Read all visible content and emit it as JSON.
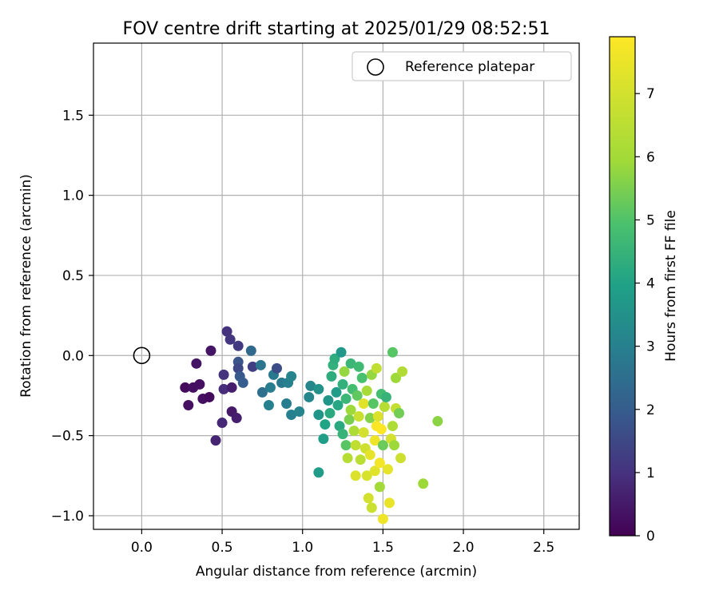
{
  "chart_data": {
    "type": "scatter",
    "title": "FOV centre drift starting at 2025/01/29 08:52:51",
    "xlabel": "Angular distance from reference (arcmin)",
    "ylabel": "Rotation from reference (arcmin)",
    "xlim": [
      -0.3,
      2.72
    ],
    "ylim": [
      -1.085,
      1.95
    ],
    "xticks": [
      0.0,
      0.5,
      1.0,
      1.5,
      2.0,
      2.5
    ],
    "xtick_labels": [
      "0.0",
      "0.5",
      "1.0",
      "1.5",
      "2.0",
      "2.5"
    ],
    "yticks": [
      -1.0,
      -0.5,
      0.0,
      0.5,
      1.0,
      1.5
    ],
    "ytick_labels": [
      "−1.0",
      "−0.5",
      "0.0",
      "0.5",
      "1.0",
      "1.5"
    ],
    "grid": true,
    "legend": {
      "position": "upper-right",
      "entries": [
        "Reference platepar"
      ]
    },
    "reference_point": {
      "x": 0.0,
      "y": 0.0
    },
    "colorbar": {
      "label": "Hours from first FF file",
      "range": [
        0,
        7.9
      ],
      "ticks": [
        0,
        1,
        2,
        3,
        4,
        5,
        6,
        7
      ],
      "tick_labels": [
        "0",
        "1",
        "2",
        "3",
        "4",
        "5",
        "6",
        "7"
      ],
      "colormap": "viridis"
    },
    "points": [
      {
        "x": 0.27,
        "y": -0.2,
        "h": 0.2
      },
      {
        "x": 0.29,
        "y": -0.31,
        "h": 0.3
      },
      {
        "x": 0.32,
        "y": -0.2,
        "h": 0.3
      },
      {
        "x": 0.34,
        "y": -0.05,
        "h": 0.4
      },
      {
        "x": 0.36,
        "y": -0.18,
        "h": 0.3
      },
      {
        "x": 0.38,
        "y": -0.27,
        "h": 0.3
      },
      {
        "x": 0.42,
        "y": -0.26,
        "h": 0.2
      },
      {
        "x": 0.43,
        "y": 0.03,
        "h": 0.4
      },
      {
        "x": 0.46,
        "y": -0.53,
        "h": 0.7
      },
      {
        "x": 0.5,
        "y": -0.42,
        "h": 0.8
      },
      {
        "x": 0.51,
        "y": -0.21,
        "h": 0.9
      },
      {
        "x": 0.51,
        "y": -0.12,
        "h": 1.0
      },
      {
        "x": 0.53,
        "y": 0.15,
        "h": 1.0
      },
      {
        "x": 0.55,
        "y": 0.1,
        "h": 1.1
      },
      {
        "x": 0.56,
        "y": -0.2,
        "h": 0.6
      },
      {
        "x": 0.56,
        "y": -0.35,
        "h": 0.5
      },
      {
        "x": 0.59,
        "y": -0.39,
        "h": 0.6
      },
      {
        "x": 0.6,
        "y": 0.06,
        "h": 1.2
      },
      {
        "x": 0.6,
        "y": -0.04,
        "h": 1.8
      },
      {
        "x": 0.6,
        "y": -0.08,
        "h": 1.5
      },
      {
        "x": 0.61,
        "y": -0.13,
        "h": 1.9
      },
      {
        "x": 0.63,
        "y": -0.17,
        "h": 2.0
      },
      {
        "x": 0.68,
        "y": 0.03,
        "h": 2.3
      },
      {
        "x": 0.69,
        "y": -0.07,
        "h": 1.3
      },
      {
        "x": 0.74,
        "y": -0.06,
        "h": 2.7
      },
      {
        "x": 0.75,
        "y": -0.23,
        "h": 2.5
      },
      {
        "x": 0.79,
        "y": -0.31,
        "h": 3.0
      },
      {
        "x": 0.8,
        "y": -0.2,
        "h": 2.9
      },
      {
        "x": 0.82,
        "y": -0.12,
        "h": 2.8
      },
      {
        "x": 0.84,
        "y": -0.08,
        "h": 1.6
      },
      {
        "x": 0.87,
        "y": -0.17,
        "h": 2.8
      },
      {
        "x": 0.9,
        "y": -0.3,
        "h": 2.9
      },
      {
        "x": 0.91,
        "y": -0.17,
        "h": 3.0
      },
      {
        "x": 0.93,
        "y": -0.13,
        "h": 3.1
      },
      {
        "x": 0.93,
        "y": -0.37,
        "h": 3.0
      },
      {
        "x": 0.98,
        "y": -0.35,
        "h": 3.1
      },
      {
        "x": 1.04,
        "y": -0.26,
        "h": 3.2
      },
      {
        "x": 1.05,
        "y": -0.19,
        "h": 3.2
      },
      {
        "x": 1.1,
        "y": -0.73,
        "h": 3.8
      },
      {
        "x": 1.1,
        "y": -0.37,
        "h": 3.6
      },
      {
        "x": 1.1,
        "y": -0.21,
        "h": 3.5
      },
      {
        "x": 1.13,
        "y": -0.52,
        "h": 3.9
      },
      {
        "x": 1.14,
        "y": -0.43,
        "h": 4.0
      },
      {
        "x": 1.16,
        "y": -0.28,
        "h": 3.6
      },
      {
        "x": 1.17,
        "y": -0.36,
        "h": 4.2
      },
      {
        "x": 1.18,
        "y": -0.13,
        "h": 4.3
      },
      {
        "x": 1.19,
        "y": -0.06,
        "h": 4.4
      },
      {
        "x": 1.2,
        "y": -0.02,
        "h": 4.3
      },
      {
        "x": 1.21,
        "y": -0.23,
        "h": 3.8
      },
      {
        "x": 1.22,
        "y": -0.31,
        "h": 4.1
      },
      {
        "x": 1.23,
        "y": -0.44,
        "h": 4.2
      },
      {
        "x": 1.24,
        "y": 0.02,
        "h": 3.7
      },
      {
        "x": 1.25,
        "y": -0.18,
        "h": 4.4
      },
      {
        "x": 1.25,
        "y": -0.49,
        "h": 4.5
      },
      {
        "x": 1.26,
        "y": -0.1,
        "h": 5.8
      },
      {
        "x": 1.27,
        "y": -0.27,
        "h": 4.6
      },
      {
        "x": 1.27,
        "y": -0.56,
        "h": 5.1
      },
      {
        "x": 1.28,
        "y": -0.64,
        "h": 6.4
      },
      {
        "x": 1.29,
        "y": -0.4,
        "h": 5.5
      },
      {
        "x": 1.3,
        "y": -0.34,
        "h": 5.9
      },
      {
        "x": 1.3,
        "y": -0.05,
        "h": 4.6
      },
      {
        "x": 1.31,
        "y": -0.21,
        "h": 4.8
      },
      {
        "x": 1.32,
        "y": -0.47,
        "h": 6.2
      },
      {
        "x": 1.33,
        "y": -0.56,
        "h": 6.6
      },
      {
        "x": 1.33,
        "y": -0.75,
        "h": 7.2
      },
      {
        "x": 1.34,
        "y": -0.25,
        "h": 5.2
      },
      {
        "x": 1.35,
        "y": -0.07,
        "h": 4.7
      },
      {
        "x": 1.35,
        "y": -0.38,
        "h": 6.8
      },
      {
        "x": 1.36,
        "y": -0.65,
        "h": 6.5
      },
      {
        "x": 1.37,
        "y": -0.14,
        "h": 4.9
      },
      {
        "x": 1.38,
        "y": -0.3,
        "h": 7.3
      },
      {
        "x": 1.38,
        "y": -0.48,
        "h": 7.0
      },
      {
        "x": 1.39,
        "y": -0.58,
        "h": 6.9
      },
      {
        "x": 1.4,
        "y": -0.22,
        "h": 6.1
      },
      {
        "x": 1.4,
        "y": -0.75,
        "h": 7.1
      },
      {
        "x": 1.41,
        "y": -0.89,
        "h": 7.0
      },
      {
        "x": 1.42,
        "y": -0.39,
        "h": 5.6
      },
      {
        "x": 1.42,
        "y": -0.62,
        "h": 7.4
      },
      {
        "x": 1.43,
        "y": -0.95,
        "h": 6.8
      },
      {
        "x": 1.43,
        "y": -0.12,
        "h": 5.8
      },
      {
        "x": 1.44,
        "y": -0.3,
        "h": 5.1
      },
      {
        "x": 1.45,
        "y": -0.53,
        "h": 7.6
      },
      {
        "x": 1.45,
        "y": -0.72,
        "h": 7.3
      },
      {
        "x": 1.46,
        "y": -0.08,
        "h": 6.6
      },
      {
        "x": 1.46,
        "y": -0.44,
        "h": 7.8
      },
      {
        "x": 1.47,
        "y": -0.38,
        "h": 7.2
      },
      {
        "x": 1.48,
        "y": -0.67,
        "h": 7.7
      },
      {
        "x": 1.48,
        "y": -0.82,
        "h": 6.0
      },
      {
        "x": 1.49,
        "y": -0.24,
        "h": 4.8
      },
      {
        "x": 1.49,
        "y": -0.46,
        "h": 7.9
      },
      {
        "x": 1.5,
        "y": -1.02,
        "h": 7.6
      },
      {
        "x": 1.5,
        "y": -0.56,
        "h": 5.3
      },
      {
        "x": 1.51,
        "y": -0.32,
        "h": 6.4
      },
      {
        "x": 1.52,
        "y": -0.26,
        "h": 4.5
      },
      {
        "x": 1.53,
        "y": -0.71,
        "h": 7.4
      },
      {
        "x": 1.54,
        "y": -0.92,
        "h": 7.5
      },
      {
        "x": 1.55,
        "y": -0.52,
        "h": 7.0
      },
      {
        "x": 1.56,
        "y": 0.02,
        "h": 5.1
      },
      {
        "x": 1.56,
        "y": -0.44,
        "h": 6.2
      },
      {
        "x": 1.57,
        "y": -0.56,
        "h": 5.9
      },
      {
        "x": 1.58,
        "y": -0.14,
        "h": 5.9
      },
      {
        "x": 1.58,
        "y": -0.33,
        "h": 6.7
      },
      {
        "x": 1.6,
        "y": -0.36,
        "h": 5.4
      },
      {
        "x": 1.61,
        "y": -0.64,
        "h": 6.9
      },
      {
        "x": 1.62,
        "y": -0.1,
        "h": 6.3
      },
      {
        "x": 1.75,
        "y": -0.8,
        "h": 5.9
      },
      {
        "x": 1.84,
        "y": -0.41,
        "h": 5.7
      }
    ]
  }
}
